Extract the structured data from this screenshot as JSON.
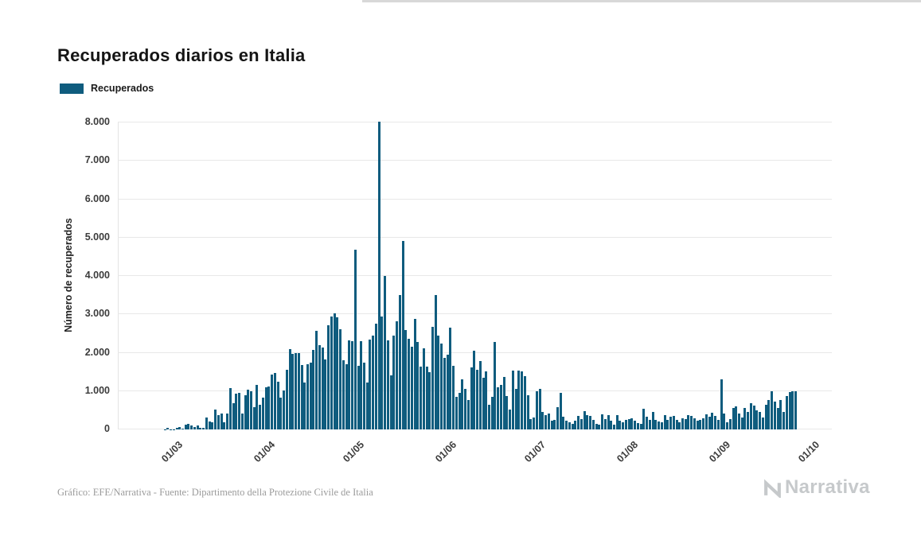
{
  "page": {
    "title": "Recuperados diarios en Italia",
    "credit": "Gráfico: EFE/Narrativa - Fuente: Dipartimento della Protezione Civile de Italia",
    "brand": "Narrativa"
  },
  "legend": {
    "label": "Recuperados",
    "color": "#0F5C7E"
  },
  "chart_data": {
    "type": "bar",
    "title": "Recuperados diarios en Italia",
    "xlabel": "",
    "ylabel": "Número de recuperados",
    "ylim": [
      0,
      8000
    ],
    "grid": true,
    "legend_position": "top-left",
    "bar_color": "#0F5C7E",
    "y_ticks": [
      {
        "value": 0,
        "label": "0"
      },
      {
        "value": 1000,
        "label": "1.000"
      },
      {
        "value": 2000,
        "label": "2.000"
      },
      {
        "value": 3000,
        "label": "3.000"
      },
      {
        "value": 4000,
        "label": "4.000"
      },
      {
        "value": 5000,
        "label": "5.000"
      },
      {
        "value": 6000,
        "label": "6.000"
      },
      {
        "value": 7000,
        "label": "7.000"
      },
      {
        "value": 8000,
        "label": "8.000"
      }
    ],
    "x_ticks": [
      {
        "label": "01/03",
        "day_index": 6
      },
      {
        "label": "01/04",
        "day_index": 37
      },
      {
        "label": "01/05",
        "day_index": 67
      },
      {
        "label": "01/06",
        "day_index": 98
      },
      {
        "label": "01/07",
        "day_index": 128
      },
      {
        "label": "01/08",
        "day_index": 159
      },
      {
        "label": "01/09",
        "day_index": 190
      },
      {
        "label": "01/10",
        "day_index": 220
      }
    ],
    "series": [
      {
        "name": "Recuperados",
        "start_date": "2020-02-24",
        "frequency": "daily",
        "values": [
          1,
          0,
          3,
          45,
          5,
          4,
          33,
          66,
          11,
          116,
          138,
          109,
          66,
          102,
          33,
          41,
          321,
          213,
          181,
          527,
          369,
          414,
          192,
          415,
          1084,
          689,
          943,
          952,
          408,
          894,
          1036,
          999,
          589,
          1159,
          646,
          819,
          1109,
          1118,
          1431,
          1480,
          1238,
          819,
          1022,
          1555,
          2099,
          1979,
          1985,
          1996,
          1677,
          1224,
          1695,
          1745,
          2072,
          2563,
          2200,
          2128,
          1822,
          2723,
          2943,
          3033,
          2922,
          2622,
          1808,
          1696,
          2317,
          2311,
          4693,
          1665,
          2304,
          1740,
          1225,
          2352,
          2452,
          2747,
          8014,
          2950,
          4008,
          2317,
          1401,
          2452,
          2809,
          3502,
          4917,
          2600,
          2366,
          2160,
          2881,
          2278,
          1638,
          2120,
          1639,
          1502,
          2677,
          3503,
          2443,
          2240,
          1874,
          1939,
          2650,
          1650,
          846,
          957,
          1297,
          1061,
          759,
          1618,
          2062,
          1546,
          1780,
          1340,
          1505,
          640,
          846,
          2289,
          1089,
          1159,
          1363,
          880,
          526,
          1526,
          1064,
          1526,
          1506,
          1399,
          890,
          264,
          305,
          996,
          1050,
          460,
          366,
          420,
          235,
          250,
          574,
          960,
          339,
          223,
          188,
          144,
          235,
          352,
          275,
          469,
          366,
          344,
          249,
          145,
          129,
          390,
          275,
          380,
          230,
          130,
          374,
          225,
          181,
          245,
          275,
          295,
          225,
          159,
          138,
          540,
          340,
          250,
          463,
          255,
          204,
          182,
          365,
          256,
          338,
          363,
          254,
          182,
          300,
          277,
          374,
          349,
          288,
          226,
          255,
          292,
          394,
          322,
          428,
          362,
          257,
          1310,
          420,
          184,
          276,
          563,
          606,
          406,
          316,
          565,
          448,
          678,
          626,
          494,
          459,
          316,
          641,
          759,
          987,
          736,
          562,
          759,
          461,
          868,
          975,
          1005,
          998
        ]
      }
    ]
  }
}
